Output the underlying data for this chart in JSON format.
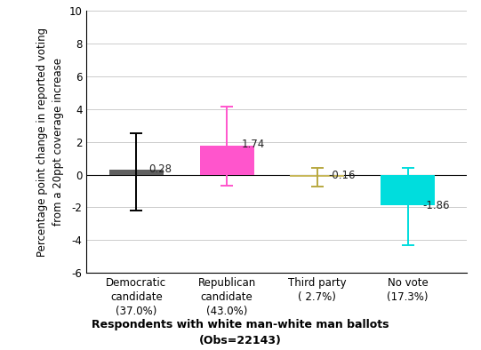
{
  "categories": [
    "Democratic\ncandidate\n(37.0%)",
    "Republican\ncandidate\n(43.0%)",
    "Third party\n( 2.7%)",
    "No vote\n(17.3%)"
  ],
  "values": [
    0.28,
    1.74,
    -0.16,
    -1.86
  ],
  "bar_colors": [
    "#606060",
    "#ff55cc",
    "#c8b85a",
    "#00dddd"
  ],
  "error_colors": [
    "#000000",
    "#ff55cc",
    "#b8a840",
    "#00dddd"
  ],
  "ci_low": [
    -2.2,
    -0.7,
    -0.72,
    -4.3
  ],
  "ci_high": [
    2.5,
    4.15,
    0.42,
    0.42
  ],
  "bar_width": 0.6,
  "ylabel_line1": "Percentage point change in reported voting",
  "ylabel_line2": "from a 20ppt coverage increase",
  "xlabel_line1": "Respondents with white man-white man ballots",
  "xlabel_line2": "(Obs=22143)",
  "ylim": [
    -6,
    10
  ],
  "yticks": [
    -6,
    -4,
    -2,
    0,
    2,
    4,
    6,
    8,
    10
  ],
  "value_labels": [
    "0.28",
    "1.74",
    "-0.16",
    "-1.86"
  ],
  "background_color": "#ffffff",
  "grid_color": "#cccccc"
}
